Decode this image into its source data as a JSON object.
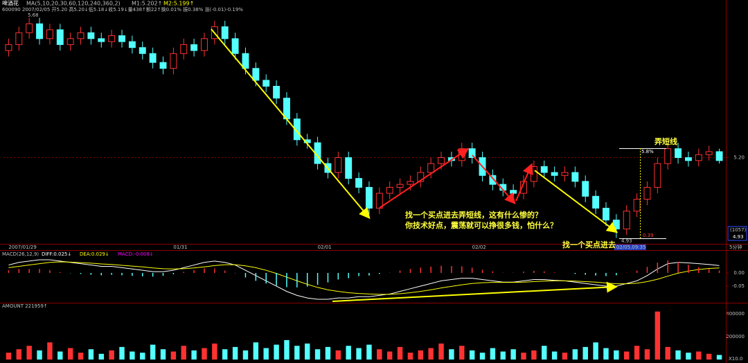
{
  "chart_data": [
    {
      "type": "candlestick",
      "title": "啤酒花",
      "indicator": "MA(5,10,20,30,60,120,240,360,2)",
      "m1": "M1:5.202↑",
      "m2": "M2:5.199↑",
      "subtitle": "600090 2007/02/05 开5.20 高5.20↓低5.18↓收5.19↓量438↑额22↑换0.01% 振0.38% 涨(-0.01)-0.19%",
      "period": "5分钟",
      "up_color": "#ff3232",
      "down_color": "#54ffff",
      "ylim": [
        4.91,
        5.73
      ],
      "yticks": [
        {
          "value": 5.2,
          "label": "5.20"
        }
      ],
      "grid": true,
      "high_label": "5.68",
      "low_label": "4.93",
      "range_labels": [
        "5.8%",
        "0.39"
      ],
      "price_box": [
        "(1057)",
        "4.93"
      ],
      "annotations": [
        "弄短线",
        "找一个买点进去弄短线，这有什么惨的？",
        "你技术好点，震荡就可以挣很多钱，怕什么？",
        "找一个买点进去"
      ],
      "categories": [
        "2007/01/29",
        null,
        null,
        null,
        null,
        null,
        null,
        null,
        null,
        null,
        null,
        null,
        null,
        null,
        null,
        null,
        "01/31",
        null,
        null,
        null,
        null,
        null,
        null,
        null,
        null,
        null,
        null,
        null,
        null,
        null,
        "02/01",
        null,
        null,
        null,
        null,
        null,
        null,
        null,
        null,
        null,
        null,
        null,
        null,
        null,
        null,
        "02/02",
        null,
        null,
        null,
        null,
        null,
        null,
        null,
        null,
        null,
        null,
        null,
        null,
        null,
        "02/05,09:35",
        null,
        null,
        null,
        null,
        null,
        null,
        null,
        null,
        null,
        null
      ],
      "candles": [
        [
          5.56,
          5.6,
          5.54,
          5.58
        ],
        [
          5.58,
          5.64,
          5.56,
          5.62
        ],
        [
          5.62,
          5.67,
          5.6,
          5.65
        ],
        [
          5.65,
          5.67,
          5.58,
          5.6
        ],
        [
          5.6,
          5.65,
          5.58,
          5.63
        ],
        [
          5.63,
          5.65,
          5.56,
          5.58
        ],
        [
          5.58,
          5.62,
          5.56,
          5.6
        ],
        [
          5.6,
          5.64,
          5.58,
          5.62
        ],
        [
          5.62,
          5.64,
          5.58,
          5.6
        ],
        [
          5.6,
          5.62,
          5.57,
          5.59
        ],
        [
          5.59,
          5.63,
          5.57,
          5.61
        ],
        [
          5.61,
          5.63,
          5.57,
          5.59
        ],
        [
          5.59,
          5.61,
          5.55,
          5.57
        ],
        [
          5.57,
          5.59,
          5.53,
          5.55
        ],
        [
          5.55,
          5.57,
          5.5,
          5.52
        ],
        [
          5.52,
          5.54,
          5.48,
          5.5
        ],
        [
          5.5,
          5.57,
          5.48,
          5.55
        ],
        [
          5.55,
          5.6,
          5.53,
          5.58
        ],
        [
          5.58,
          5.6,
          5.54,
          5.56
        ],
        [
          5.56,
          5.62,
          5.54,
          5.6
        ],
        [
          5.6,
          5.66,
          5.58,
          5.64
        ],
        [
          5.64,
          5.66,
          5.58,
          5.6
        ],
        [
          5.6,
          5.62,
          5.53,
          5.55
        ],
        [
          5.55,
          5.57,
          5.48,
          5.5
        ],
        [
          5.5,
          5.52,
          5.44,
          5.46
        ],
        [
          5.46,
          5.48,
          5.42,
          5.44
        ],
        [
          5.44,
          5.46,
          5.38,
          5.4
        ],
        [
          5.4,
          5.42,
          5.31,
          5.33
        ],
        [
          5.33,
          5.35,
          5.24,
          5.26
        ],
        [
          5.26,
          5.28,
          5.23,
          5.25
        ],
        [
          5.25,
          5.27,
          5.16,
          5.18
        ],
        [
          5.18,
          5.2,
          5.13,
          5.15
        ],
        [
          5.15,
          5.22,
          5.13,
          5.2
        ],
        [
          5.2,
          5.22,
          5.11,
          5.13
        ],
        [
          5.13,
          5.15,
          5.08,
          5.1
        ],
        [
          5.1,
          5.12,
          5.01,
          5.03
        ],
        [
          5.03,
          5.1,
          5.01,
          5.08
        ],
        [
          5.08,
          5.12,
          5.06,
          5.1
        ],
        [
          5.1,
          5.13,
          5.08,
          5.11
        ],
        [
          5.11,
          5.14,
          5.09,
          5.12
        ],
        [
          5.12,
          5.17,
          5.1,
          5.15
        ],
        [
          5.15,
          5.2,
          5.13,
          5.18
        ],
        [
          5.18,
          5.22,
          5.16,
          5.2
        ],
        [
          5.2,
          5.22,
          5.17,
          5.19
        ],
        [
          5.19,
          5.25,
          5.17,
          5.23
        ],
        [
          5.23,
          5.25,
          5.18,
          5.2
        ],
        [
          5.2,
          5.22,
          5.12,
          5.14
        ],
        [
          5.14,
          5.16,
          5.09,
          5.11
        ],
        [
          5.11,
          5.13,
          5.07,
          5.09
        ],
        [
          5.09,
          5.11,
          5.06,
          5.08
        ],
        [
          5.08,
          5.14,
          5.06,
          5.12
        ],
        [
          5.12,
          5.19,
          5.1,
          5.17
        ],
        [
          5.17,
          5.19,
          5.13,
          5.15
        ],
        [
          5.15,
          5.17,
          5.12,
          5.14
        ],
        [
          5.14,
          5.17,
          5.12,
          5.15
        ],
        [
          5.15,
          5.17,
          5.1,
          5.12
        ],
        [
          5.12,
          5.14,
          5.05,
          5.07
        ],
        [
          5.07,
          5.09,
          5.01,
          5.03
        ],
        [
          5.03,
          5.05,
          4.97,
          4.99
        ],
        [
          4.99,
          5.01,
          4.93,
          4.96
        ],
        [
          4.96,
          5.04,
          4.94,
          5.02
        ],
        [
          5.02,
          5.08,
          5.0,
          5.06
        ],
        [
          5.06,
          5.12,
          5.04,
          5.1
        ],
        [
          5.1,
          5.2,
          5.08,
          5.18
        ],
        [
          5.18,
          5.25,
          5.16,
          5.23
        ],
        [
          5.23,
          5.25,
          5.18,
          5.2
        ],
        [
          5.2,
          5.22,
          5.17,
          5.19
        ],
        [
          5.19,
          5.23,
          5.17,
          5.21
        ],
        [
          5.21,
          5.24,
          5.19,
          5.22
        ],
        [
          5.22,
          5.23,
          5.18,
          5.19
        ]
      ]
    },
    {
      "type": "macd",
      "title": "MACD(26,12,9)",
      "up_color": "#ff3232",
      "down_color": "#54ffff",
      "ylim": [
        -0.113,
        0.084
      ],
      "yticks": [
        {
          "value": 0,
          "label": "0.00"
        },
        -0.05
      ],
      "series": [
        {
          "name": "DIFF:0.025↓",
          "color": "#ffffff",
          "values": [
            0.03,
            0.04,
            0.045,
            0.05,
            0.05,
            0.045,
            0.04,
            0.035,
            0.03,
            0.025,
            0.025,
            0.02,
            0.015,
            0.01,
            0.005,
            0.005,
            0.01,
            0.02,
            0.03,
            0.04,
            0.045,
            0.04,
            0.03,
            0.01,
            -0.01,
            -0.03,
            -0.05,
            -0.07,
            -0.085,
            -0.095,
            -0.1,
            -0.1,
            -0.095,
            -0.095,
            -0.09,
            -0.09,
            -0.085,
            -0.08,
            -0.07,
            -0.06,
            -0.05,
            -0.04,
            -0.03,
            -0.025,
            -0.02,
            -0.02,
            -0.025,
            -0.03,
            -0.035,
            -0.035,
            -0.03,
            -0.025,
            -0.025,
            -0.028,
            -0.03,
            -0.035,
            -0.04,
            -0.045,
            -0.05,
            -0.05,
            -0.04,
            -0.03,
            -0.01,
            0.015,
            0.035,
            0.04,
            0.038,
            0.035,
            0.032,
            0.028
          ]
        },
        {
          "name": "DEA:0.029↓",
          "color": "#ffff00",
          "values": [
            0.02,
            0.025,
            0.03,
            0.035,
            0.04,
            0.042,
            0.041,
            0.039,
            0.037,
            0.034,
            0.032,
            0.029,
            0.026,
            0.023,
            0.019,
            0.016,
            0.015,
            0.016,
            0.019,
            0.023,
            0.028,
            0.031,
            0.031,
            0.027,
            0.02,
            0.01,
            -0.002,
            -0.016,
            -0.03,
            -0.043,
            -0.055,
            -0.064,
            -0.07,
            -0.075,
            -0.078,
            -0.08,
            -0.081,
            -0.081,
            -0.079,
            -0.075,
            -0.07,
            -0.064,
            -0.057,
            -0.051,
            -0.045,
            -0.04,
            -0.037,
            -0.036,
            -0.036,
            -0.036,
            -0.035,
            -0.033,
            -0.031,
            -0.03,
            -0.03,
            -0.031,
            -0.033,
            -0.035,
            -0.038,
            -0.041,
            -0.041,
            -0.039,
            -0.033,
            -0.024,
            -0.012,
            -0.001,
            0.007,
            0.013,
            0.017,
            0.019
          ]
        },
        {
          "name": "MACD:-0.008↓",
          "color": "#ff00ff",
          "bars": true,
          "values": [
            0.01,
            0.015,
            0.015,
            0.015,
            0.01,
            0.003,
            -0.001,
            -0.004,
            -0.007,
            -0.009,
            -0.007,
            -0.009,
            -0.011,
            -0.013,
            -0.014,
            -0.011,
            -0.005,
            0.004,
            0.011,
            0.017,
            0.017,
            0.009,
            -0.001,
            -0.017,
            -0.03,
            -0.04,
            -0.048,
            -0.054,
            -0.055,
            -0.052,
            -0.045,
            -0.036,
            -0.025,
            -0.02,
            -0.012,
            -0.01,
            -0.004,
            0.001,
            0.009,
            0.015,
            0.02,
            0.024,
            0.027,
            0.026,
            0.025,
            0.02,
            0.012,
            0.006,
            0.001,
            0.001,
            0.005,
            0.008,
            0.006,
            0.002,
            0,
            -0.004,
            -0.007,
            -0.01,
            -0.012,
            -0.009,
            0.001,
            0.009,
            0.023,
            0.039,
            0.047,
            0.041,
            0.031,
            0.022,
            0.015,
            0.009
          ]
        }
      ]
    },
    {
      "type": "bar",
      "title": "AMOUNT 221959↑",
      "unit": "X10.0",
      "up_color": "#ff3232",
      "down_color": "#54ffff",
      "ylim": [
        0,
        500000
      ],
      "yticks": [
        400000,
        200000
      ],
      "values": [
        60000,
        90000,
        120000,
        80000,
        150000,
        70000,
        100000,
        60000,
        90000,
        50000,
        80000,
        110000,
        70000,
        60000,
        130000,
        90000,
        70000,
        120000,
        80000,
        100000,
        140000,
        90000,
        110000,
        80000,
        150000,
        100000,
        130000,
        170000,
        120000,
        140000,
        90000,
        110000,
        80000,
        120000,
        100000,
        130000,
        90000,
        70000,
        110000,
        60000,
        80000,
        100000,
        140000,
        90000,
        120000,
        80000,
        60000,
        100000,
        70000,
        90000,
        60000,
        80000,
        120000,
        70000,
        60000,
        90000,
        110000,
        150000,
        100000,
        80000,
        70000,
        120000,
        90000,
        420000,
        110000,
        80000,
        60000,
        70000,
        50000,
        40000
      ]
    }
  ]
}
